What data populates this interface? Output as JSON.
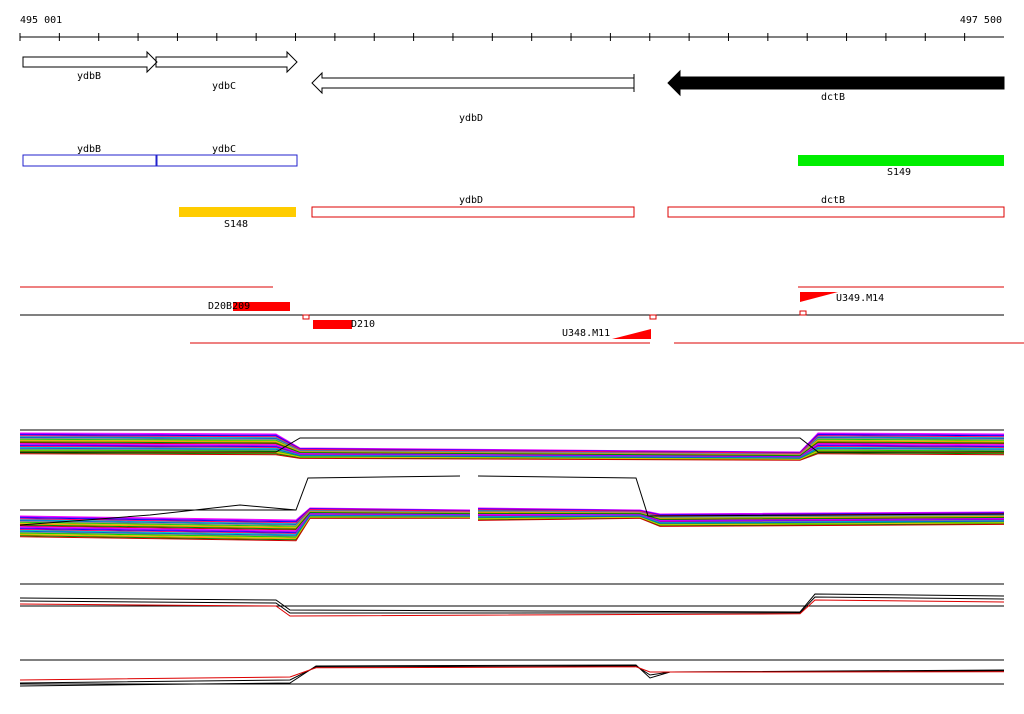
{
  "ruler": {
    "start": "495 001",
    "end": "497 500"
  },
  "gene_arrows": [
    {
      "label": "ydbB"
    },
    {
      "label": "ydbC"
    },
    {
      "label": "ydbD"
    },
    {
      "label": "dctB"
    }
  ],
  "cds_boxes": [
    {
      "label": "ydbB"
    },
    {
      "label": "ydbC"
    }
  ],
  "sites": [
    {
      "label": "S149"
    },
    {
      "label": "S148"
    }
  ],
  "transcripts": [
    {
      "label": "ydbD"
    },
    {
      "label": "dctB"
    }
  ],
  "probes": [
    {
      "label": "D20B209"
    },
    {
      "label": "D210"
    },
    {
      "label": "U348.M11"
    },
    {
      "label": "U349.M14"
    }
  ]
}
